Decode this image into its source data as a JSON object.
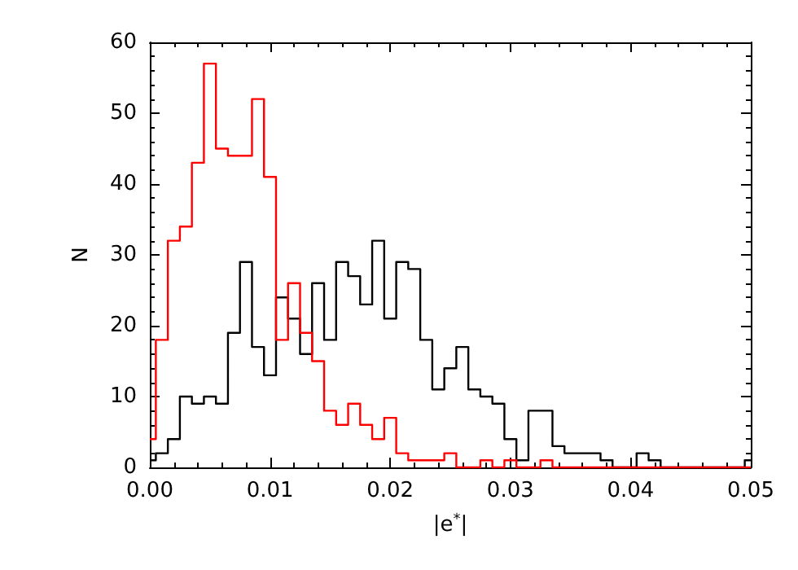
{
  "chart_data": {
    "type": "histogram",
    "xlabel": "|e$^{*}$|",
    "ylabel": "N",
    "bins": [
      0,
      0.0005,
      0.0015,
      0.0025,
      0.0035,
      0.0045,
      0.0055,
      0.0065,
      0.0075,
      0.0085,
      0.0095,
      0.0105,
      0.0115,
      0.0125,
      0.0135,
      0.0145,
      0.0155,
      0.0165,
      0.0175,
      0.0185,
      0.0195,
      0.0205,
      0.0215,
      0.0225,
      0.0235,
      0.0245,
      0.0255,
      0.0265,
      0.0275,
      0.0285,
      0.0295,
      0.0305,
      0.0315,
      0.0325,
      0.0335,
      0.0345,
      0.0355,
      0.0365,
      0.0375,
      0.0385,
      0.0395,
      0.0405,
      0.0415,
      0.0425,
      0.0435,
      0.0445,
      0.0455,
      0.0465,
      0.0475,
      0.0485,
      0.0495,
      0.05
    ],
    "series": [
      {
        "color": "#000000",
        "values": [
          1,
          2,
          4,
          10,
          9,
          10,
          9,
          19,
          29,
          17,
          13,
          24,
          21,
          16,
          26,
          18,
          29,
          27,
          23,
          32,
          21,
          29,
          28,
          18,
          11,
          14,
          17,
          11,
          10,
          9,
          4,
          1,
          8,
          8,
          3,
          2,
          2,
          2,
          1,
          0,
          0,
          2,
          1,
          0,
          0,
          0,
          0,
          0,
          0,
          0,
          1
        ]
      },
      {
        "color": "#ff0000",
        "values": [
          4,
          18,
          32,
          34,
          43,
          57,
          45,
          44,
          44,
          52,
          41,
          18,
          26,
          19,
          15,
          8,
          6,
          9,
          6,
          4,
          7,
          2,
          1,
          1,
          1,
          2,
          0,
          0,
          1,
          0,
          1,
          0,
          0,
          1,
          0,
          0,
          0,
          0,
          0,
          0,
          0,
          0,
          0,
          0,
          0,
          0,
          0,
          0,
          0,
          0,
          0
        ]
      }
    ],
    "xlim": [
      0,
      0.05
    ],
    "xticks": [
      {
        "value": 0,
        "label": "0.00"
      },
      {
        "value": 0.01,
        "label": "0.01"
      },
      {
        "value": 0.02,
        "label": "0.02"
      },
      {
        "value": 0.03,
        "label": "0.03"
      },
      {
        "value": 0.04,
        "label": "0.04"
      },
      {
        "value": 0.05,
        "label": "0.05"
      }
    ],
    "ylim": [
      0,
      60
    ],
    "yticks": [
      0,
      10,
      20,
      30,
      40,
      50,
      60
    ]
  }
}
